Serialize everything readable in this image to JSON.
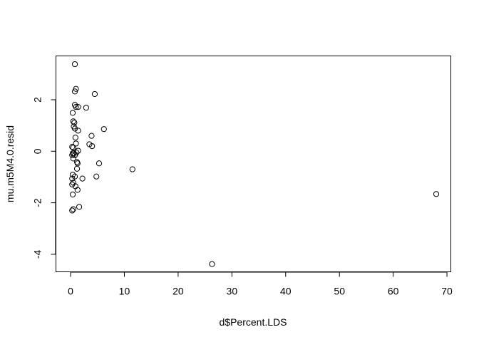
{
  "chart_data": {
    "type": "scatter",
    "title": "",
    "xlabel": "d$Percent.LDS",
    "ylabel": "mu.m5M4.0.resid",
    "xlim": [
      -2.72,
      70.72
    ],
    "ylim": [
      -4.68,
      3.7
    ],
    "xticks": [
      0,
      10,
      20,
      30,
      40,
      50,
      60,
      70
    ],
    "xtick_labels": [
      "0",
      "10",
      "20",
      "30",
      "40",
      "50",
      "60",
      "70"
    ],
    "yticks": [
      -4,
      -2,
      0,
      2
    ],
    "ytick_labels": [
      "-4",
      "-2",
      "0",
      "2"
    ],
    "grid": false,
    "legend": "none",
    "point_style": "open-circle",
    "series": [
      {
        "points": [
          [
            0.8,
            3.38
          ],
          [
            1.0,
            2.42
          ],
          [
            0.8,
            2.32
          ],
          [
            4.5,
            2.22
          ],
          [
            0.8,
            1.8
          ],
          [
            1.0,
            1.72
          ],
          [
            1.4,
            1.72
          ],
          [
            2.9,
            1.69
          ],
          [
            0.4,
            1.49
          ],
          [
            0.5,
            1.16
          ],
          [
            0.7,
            1.11
          ],
          [
            0.6,
            0.96
          ],
          [
            0.8,
            0.88
          ],
          [
            6.2,
            0.86
          ],
          [
            1.4,
            0.8
          ],
          [
            0.9,
            0.53
          ],
          [
            3.9,
            0.6
          ],
          [
            3.5,
            0.27
          ],
          [
            4.0,
            0.2
          ],
          [
            1.0,
            0.3
          ],
          [
            0.3,
            0.17
          ],
          [
            0.5,
            0.14
          ],
          [
            1.4,
            0.02
          ],
          [
            1.1,
            -0.05
          ],
          [
            0.4,
            -0.08
          ],
          [
            0.6,
            -0.08
          ],
          [
            0.3,
            -0.15
          ],
          [
            0.8,
            -0.15
          ],
          [
            0.5,
            -0.28
          ],
          [
            1.2,
            -0.42
          ],
          [
            1.3,
            -0.47
          ],
          [
            5.3,
            -0.47
          ],
          [
            1.2,
            -0.68
          ],
          [
            11.5,
            -0.7
          ],
          [
            0.4,
            -0.91
          ],
          [
            0.8,
            -0.98
          ],
          [
            4.8,
            -0.98
          ],
          [
            0.3,
            -1.06
          ],
          [
            2.2,
            -1.06
          ],
          [
            0.5,
            -1.22
          ],
          [
            0.3,
            -1.29
          ],
          [
            0.9,
            -1.36
          ],
          [
            1.3,
            -1.5
          ],
          [
            0.4,
            -1.68
          ],
          [
            68.0,
            -1.66
          ],
          [
            1.6,
            -2.16
          ],
          [
            0.5,
            -2.25
          ],
          [
            0.3,
            -2.3
          ],
          [
            26.3,
            -4.38
          ]
        ]
      }
    ]
  }
}
